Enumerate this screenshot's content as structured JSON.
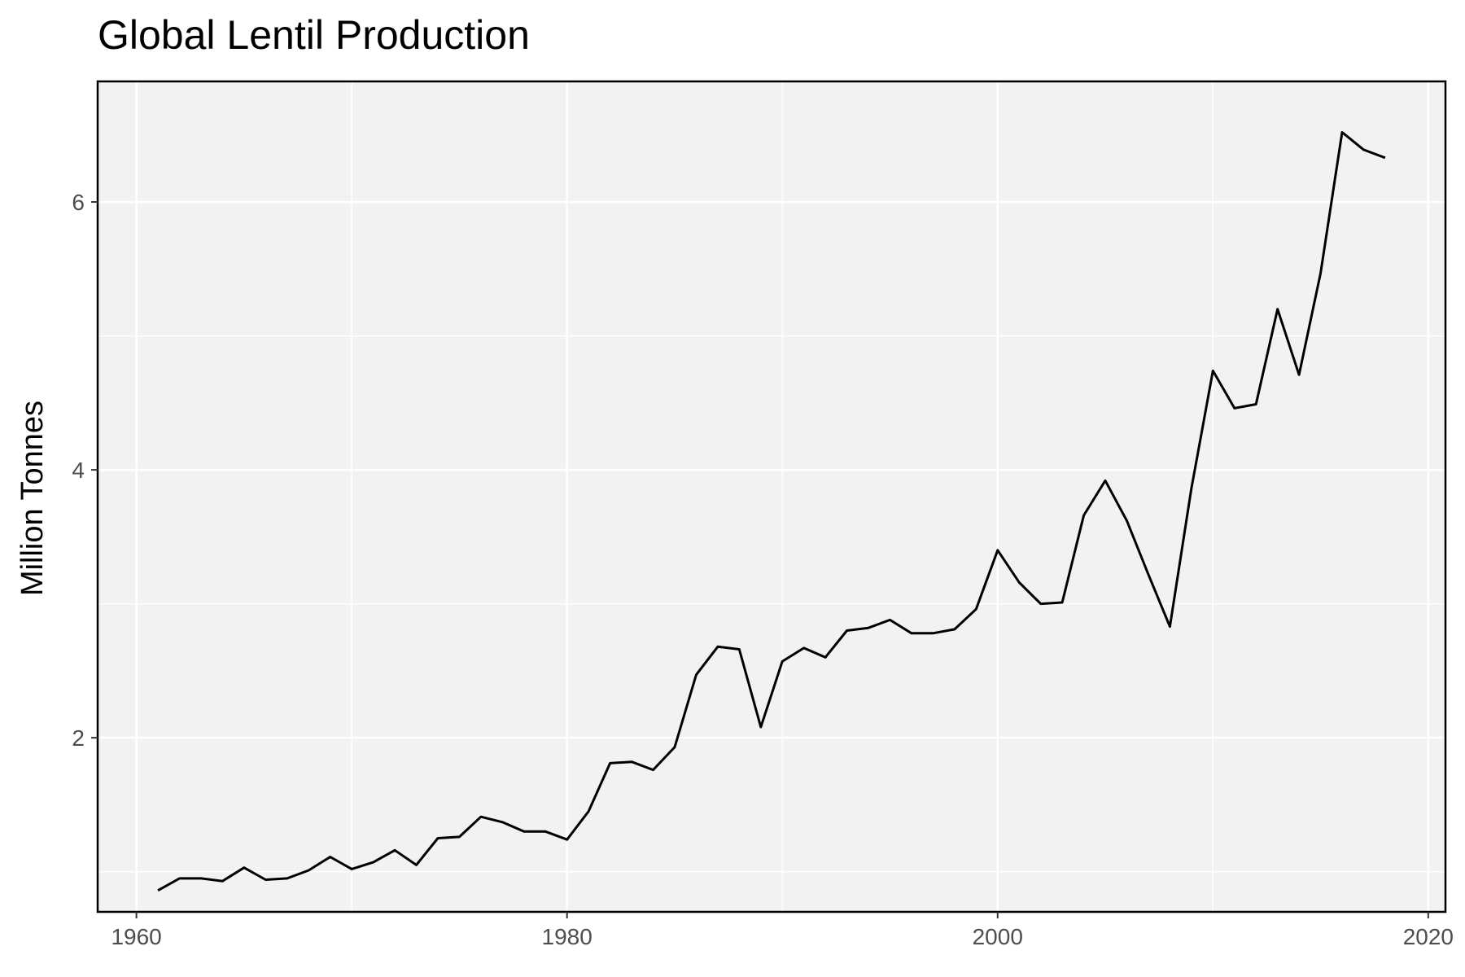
{
  "chart_data": {
    "type": "line",
    "title": "Global Lentil Production",
    "xlabel": "",
    "ylabel": "Million Tonnes",
    "xlim": [
      1958.2,
      2020.8
    ],
    "ylim": [
      0.7,
      6.9
    ],
    "x_ticks": [
      1960,
      1980,
      2000,
      2020
    ],
    "x_tick_labels": [
      "1960",
      "1980",
      "2000",
      "2020"
    ],
    "x_minor_gridlines": [
      1970,
      1990,
      2010
    ],
    "y_ticks": [
      2,
      4,
      6
    ],
    "y_tick_labels": [
      "2",
      "4",
      "6"
    ],
    "y_minor_gridlines": [
      1,
      3,
      5
    ],
    "grid": true,
    "legend": "none",
    "colors": {
      "line": "#000000",
      "panel": "#f2f2f2",
      "grid": "#ffffff",
      "border": "#000000"
    },
    "series": [
      {
        "x": [
          1961,
          1962,
          1963,
          1964,
          1965,
          1966,
          1967,
          1968,
          1969,
          1970,
          1971,
          1972,
          1973,
          1974,
          1975,
          1976,
          1977,
          1978,
          1979,
          1980,
          1981,
          1982,
          1983,
          1984,
          1985,
          1986,
          1987,
          1988,
          1989,
          1990,
          1991,
          1992,
          1993,
          1994,
          1995,
          1996,
          1997,
          1998,
          1999,
          2000,
          2001,
          2002,
          2003,
          2004,
          2005,
          2006,
          2007,
          2008,
          2009,
          2010,
          2011,
          2012,
          2013,
          2014,
          2015,
          2016,
          2017,
          2018
        ],
        "values": [
          0.86,
          0.95,
          0.95,
          0.93,
          1.03,
          0.94,
          0.95,
          1.01,
          1.11,
          1.02,
          1.07,
          1.16,
          1.05,
          1.25,
          1.26,
          1.41,
          1.37,
          1.3,
          1.3,
          1.24,
          1.45,
          1.81,
          1.82,
          1.76,
          1.93,
          2.47,
          2.68,
          2.66,
          2.08,
          2.57,
          2.67,
          2.6,
          2.8,
          2.82,
          2.88,
          2.78,
          2.78,
          2.81,
          2.96,
          3.4,
          3.16,
          3.0,
          3.01,
          3.66,
          3.92,
          3.62,
          3.22,
          2.83,
          3.86,
          4.74,
          4.46,
          4.49,
          5.2,
          4.71,
          5.47,
          6.52,
          6.39,
          6.33
        ]
      }
    ]
  }
}
